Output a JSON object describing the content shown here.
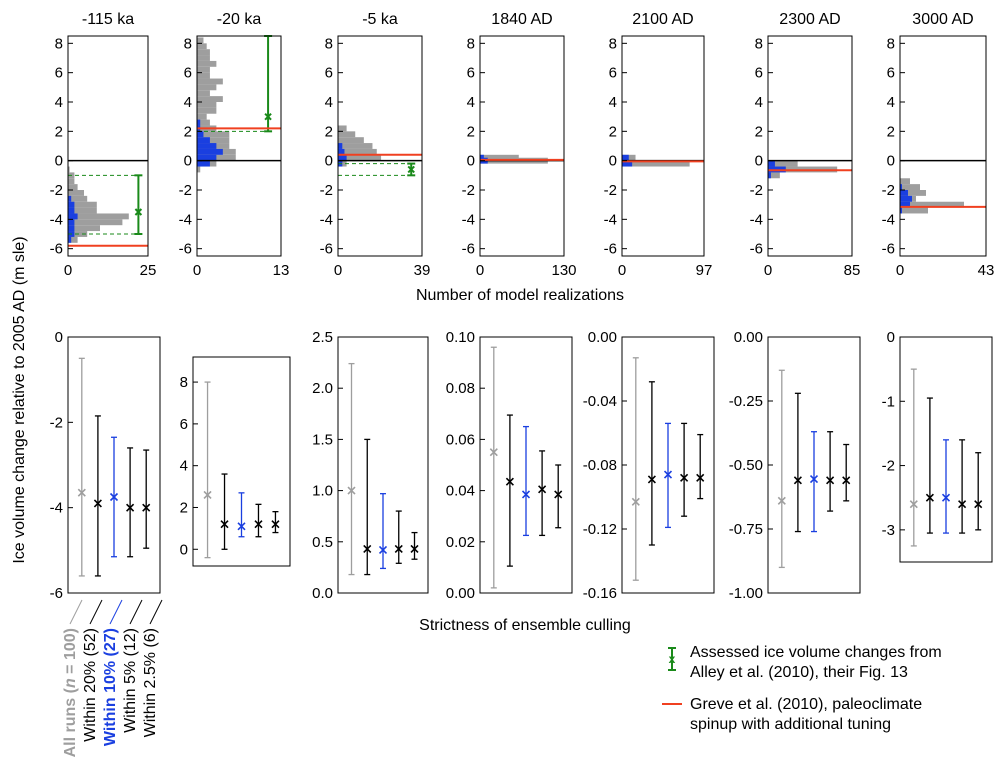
{
  "figure": {
    "y_axis_label": "Ice volume change relative to 2005 AD (m sle)",
    "top_x_axis_label": "Number of model realizations",
    "bottom_x_axis_label": "Strictness of ensemble culling"
  },
  "legend": {
    "alley_line1": "Assessed ice volume changes from",
    "alley_line2": "Alley et al. (2010), their Fig. 13",
    "greve_line1": "Greve et al. (2010), paleoclimate",
    "greve_line2": "spinup with additional tuning"
  },
  "colors": {
    "all_runs": "#9e9e9e",
    "within10": "#1a3fe0",
    "black": "#000000",
    "alley": "#1a8a1a",
    "greve": "#f04020"
  },
  "categories": [
    {
      "prefix": "All runs (",
      "italic": "n",
      "suffix": " = 100)",
      "style": "gray-bold"
    },
    {
      "prefix": "Within 20% (52)",
      "style": "black"
    },
    {
      "prefix": "Within 10% (27)",
      "style": "blue-bold"
    },
    {
      "prefix": "Within 5% (12)",
      "style": "black"
    },
    {
      "prefix": "Within 2.5% (6)",
      "style": "black"
    }
  ],
  "chart_data": [
    {
      "type": "bar",
      "title": "-115 ka",
      "ylim": [
        -6.5,
        8.5
      ],
      "yticks": [
        -6,
        -4,
        -2,
        0,
        2,
        4,
        6,
        8
      ],
      "xlim": [
        0,
        25
      ],
      "xtick_labels": [
        "0",
        "25"
      ],
      "gray_bars": [
        [
          -0.6,
          0.5
        ],
        [
          -1.0,
          2
        ],
        [
          -1.4,
          2
        ],
        [
          -1.8,
          3
        ],
        [
          -2.2,
          5
        ],
        [
          -2.6,
          6
        ],
        [
          -3.0,
          9
        ],
        [
          -3.4,
          9
        ],
        [
          -3.8,
          19
        ],
        [
          -4.2,
          17
        ],
        [
          -4.6,
          10
        ],
        [
          -5.0,
          6
        ],
        [
          -5.4,
          3
        ]
      ],
      "blue_bars": [
        [
          -2.6,
          1
        ],
        [
          -3.0,
          2
        ],
        [
          -3.4,
          2
        ],
        [
          -3.8,
          3
        ],
        [
          -4.2,
          2
        ],
        [
          -4.6,
          2
        ],
        [
          -5.0,
          2
        ],
        [
          -5.4,
          1
        ]
      ],
      "greve": -5.8,
      "alley": {
        "center": -3.5,
        "min": -5.0,
        "max": -1.0,
        "count": 22
      }
    },
    {
      "type": "bar",
      "title": "-20 ka",
      "ylim": [
        -6.5,
        8.5
      ],
      "yticks": [
        -6,
        -4,
        -2,
        0,
        2,
        4,
        6,
        8
      ],
      "xlim": [
        0,
        13
      ],
      "xtick_labels": [
        "0",
        "13"
      ],
      "gray_bars": [
        [
          -0.6,
          0.5
        ],
        [
          -0.2,
          3
        ],
        [
          0.2,
          6
        ],
        [
          0.6,
          6
        ],
        [
          1.0,
          5
        ],
        [
          1.4,
          5
        ],
        [
          1.8,
          5
        ],
        [
          2.2,
          3
        ],
        [
          2.6,
          2
        ],
        [
          3.0,
          1.5
        ],
        [
          3.4,
          3
        ],
        [
          3.8,
          3
        ],
        [
          4.2,
          4
        ],
        [
          4.6,
          2
        ],
        [
          5.0,
          3
        ],
        [
          5.4,
          4
        ],
        [
          5.8,
          2
        ],
        [
          6.2,
          2
        ],
        [
          6.6,
          3
        ],
        [
          7.0,
          2
        ],
        [
          7.4,
          2
        ],
        [
          7.8,
          1.5
        ],
        [
          8.2,
          1
        ]
      ],
      "blue_bars": [
        [
          -0.2,
          2
        ],
        [
          0.2,
          3
        ],
        [
          0.6,
          4
        ],
        [
          1.0,
          3
        ],
        [
          1.4,
          2
        ],
        [
          1.8,
          1
        ],
        [
          2.2,
          0.5
        ],
        [
          2.6,
          0.5
        ]
      ],
      "greve": 2.2,
      "alley": {
        "center": 3.0,
        "min": 2.0,
        "max": 8.5,
        "count": 11
      }
    },
    {
      "type": "bar",
      "title": "-5 ka",
      "ylim": [
        -6.5,
        8.5
      ],
      "yticks": [
        -6,
        -4,
        -2,
        0,
        2,
        4,
        6,
        8
      ],
      "xlim": [
        0,
        39
      ],
      "xtick_labels": [
        "0",
        "39"
      ],
      "gray_bars": [
        [
          -0.2,
          4
        ],
        [
          0.2,
          20
        ],
        [
          0.6,
          18
        ],
        [
          1.0,
          16
        ],
        [
          1.4,
          12
        ],
        [
          1.8,
          8
        ],
        [
          2.2,
          4
        ]
      ],
      "blue_bars": [
        [
          -0.2,
          2
        ],
        [
          0.2,
          4
        ],
        [
          0.6,
          3
        ],
        [
          1.0,
          2
        ]
      ],
      "greve": 0.4,
      "alley": {
        "center": -0.6,
        "min": -1.0,
        "max": -0.2,
        "count": 34
      }
    },
    {
      "type": "bar",
      "title": "1840 AD",
      "ylim": [
        -6.5,
        8.5
      ],
      "yticks": [
        -6,
        -4,
        -2,
        0,
        2,
        4,
        6,
        8
      ],
      "xlim": [
        0,
        130
      ],
      "xtick_labels": [
        "0",
        "130"
      ],
      "gray_bars": [
        [
          0.0,
          105
        ],
        [
          0.2,
          60
        ]
      ],
      "blue_bars": [
        [
          0.0,
          12
        ],
        [
          0.2,
          6
        ]
      ],
      "greve": 0.05,
      "alley": null
    },
    {
      "type": "bar",
      "title": "2100 AD",
      "ylim": [
        -6.5,
        8.5
      ],
      "yticks": [
        -6,
        -4,
        -2,
        0,
        2,
        4,
        6,
        8
      ],
      "xlim": [
        0,
        97
      ],
      "xtick_labels": [
        "0",
        "97"
      ],
      "gray_bars": [
        [
          -0.2,
          80
        ],
        [
          0.2,
          16
        ]
      ],
      "blue_bars": [
        [
          -0.2,
          12
        ],
        [
          0.2,
          8
        ]
      ],
      "greve": -0.05,
      "alley": null
    },
    {
      "type": "bar",
      "title": "2300 AD",
      "ylim": [
        -6.5,
        8.5
      ],
      "yticks": [
        -6,
        -4,
        -2,
        0,
        2,
        4,
        6,
        8
      ],
      "xlim": [
        0,
        85
      ],
      "xtick_labels": [
        "0",
        "85"
      ],
      "gray_bars": [
        [
          -0.2,
          30
        ],
        [
          -0.6,
          70
        ],
        [
          -1.0,
          12
        ]
      ],
      "blue_bars": [
        [
          -0.2,
          7
        ],
        [
          -0.6,
          18
        ],
        [
          -1.0,
          3
        ]
      ],
      "greve": -0.65,
      "alley": null
    },
    {
      "type": "bar",
      "title": "3000 AD",
      "ylim": [
        -6.5,
        8.5
      ],
      "yticks": [
        -6,
        -4,
        -2,
        0,
        2,
        4,
        6,
        8
      ],
      "xlim": [
        0,
        43
      ],
      "xtick_labels": [
        "0",
        "43"
      ],
      "gray_bars": [
        [
          -1.4,
          5
        ],
        [
          -1.8,
          10
        ],
        [
          -2.2,
          13
        ],
        [
          -2.6,
          8
        ],
        [
          -3.0,
          32
        ],
        [
          -3.4,
          14
        ]
      ],
      "blue_bars": [
        [
          -1.8,
          1
        ],
        [
          -2.2,
          4
        ],
        [
          -2.6,
          6
        ],
        [
          -3.0,
          5
        ],
        [
          -3.4,
          1
        ]
      ],
      "greve": -3.15,
      "alley": null
    },
    {
      "type": "errorbar",
      "ylim": [
        -6,
        0
      ],
      "yticks": [
        0,
        -2,
        -4,
        -6
      ],
      "series": [
        {
          "center": -3.65,
          "min": -5.6,
          "max": -0.5
        },
        {
          "center": -3.9,
          "min": -5.6,
          "max": -1.85
        },
        {
          "center": -3.75,
          "min": -5.15,
          "max": -2.35
        },
        {
          "center": -4.0,
          "min": -5.15,
          "max": -2.6
        },
        {
          "center": -4.0,
          "min": -4.95,
          "max": -2.65
        }
      ]
    },
    {
      "type": "errorbar",
      "ylim": [
        -0.8,
        9.2
      ],
      "yticks": [
        0,
        2,
        4,
        6,
        8
      ],
      "series": [
        {
          "center": 2.6,
          "min": -0.4,
          "max": 8.0
        },
        {
          "center": 1.2,
          "min": 0.0,
          "max": 3.6
        },
        {
          "center": 1.1,
          "min": 0.6,
          "max": 2.7
        },
        {
          "center": 1.2,
          "min": 0.6,
          "max": 2.15
        },
        {
          "center": 1.2,
          "min": 0.8,
          "max": 1.8
        }
      ]
    },
    {
      "type": "errorbar",
      "ylim": [
        0,
        2.5
      ],
      "yticks": [
        0.0,
        0.5,
        1.0,
        1.5,
        2.0,
        2.5
      ],
      "series": [
        {
          "center": 1.0,
          "min": 0.18,
          "max": 2.24
        },
        {
          "center": 0.43,
          "min": 0.18,
          "max": 1.5
        },
        {
          "center": 0.42,
          "min": 0.24,
          "max": 0.97
        },
        {
          "center": 0.43,
          "min": 0.29,
          "max": 0.8
        },
        {
          "center": 0.43,
          "min": 0.33,
          "max": 0.59
        }
      ]
    },
    {
      "type": "errorbar",
      "ylim": [
        0,
        0.1
      ],
      "yticks": [
        0.0,
        0.02,
        0.04,
        0.06,
        0.08,
        0.1
      ],
      "series": [
        {
          "center": 0.055,
          "min": 0.002,
          "max": 0.096
        },
        {
          "center": 0.0435,
          "min": 0.0105,
          "max": 0.0695
        },
        {
          "center": 0.0385,
          "min": 0.0225,
          "max": 0.065
        },
        {
          "center": 0.0405,
          "min": 0.0225,
          "max": 0.0555
        },
        {
          "center": 0.0385,
          "min": 0.0255,
          "max": 0.05
        }
      ]
    },
    {
      "type": "errorbar",
      "ylim": [
        -0.16,
        0.0
      ],
      "yticks": [
        0.0,
        -0.04,
        -0.08,
        -0.12,
        -0.16
      ],
      "series": [
        {
          "center": -0.103,
          "min": -0.152,
          "max": -0.013
        },
        {
          "center": -0.089,
          "min": -0.13,
          "max": -0.028
        },
        {
          "center": -0.086,
          "min": -0.119,
          "max": -0.054
        },
        {
          "center": -0.088,
          "min": -0.112,
          "max": -0.054
        },
        {
          "center": -0.088,
          "min": -0.101,
          "max": -0.061
        }
      ]
    },
    {
      "type": "errorbar",
      "ylim": [
        -1.0,
        0.0
      ],
      "yticks": [
        0.0,
        -0.25,
        -0.5,
        -0.75,
        -1.0
      ],
      "series": [
        {
          "center": -0.64,
          "min": -0.9,
          "max": -0.13
        },
        {
          "center": -0.56,
          "min": -0.76,
          "max": -0.22
        },
        {
          "center": -0.555,
          "min": -0.76,
          "max": -0.37
        },
        {
          "center": -0.56,
          "min": -0.68,
          "max": -0.37
        },
        {
          "center": -0.56,
          "min": -0.64,
          "max": -0.42
        }
      ]
    },
    {
      "type": "errorbar",
      "ylim": [
        -3.5,
        0.0
      ],
      "yticks": [
        0,
        -1,
        -2,
        -3
      ],
      "series": [
        {
          "center": -2.6,
          "min": -3.25,
          "max": -0.5
        },
        {
          "center": -2.5,
          "min": -3.05,
          "max": -0.95
        },
        {
          "center": -2.5,
          "min": -3.05,
          "max": -1.6
        },
        {
          "center": -2.6,
          "min": -3.05,
          "max": -1.6
        },
        {
          "center": -2.6,
          "min": -3.0,
          "max": -1.8
        }
      ]
    }
  ]
}
